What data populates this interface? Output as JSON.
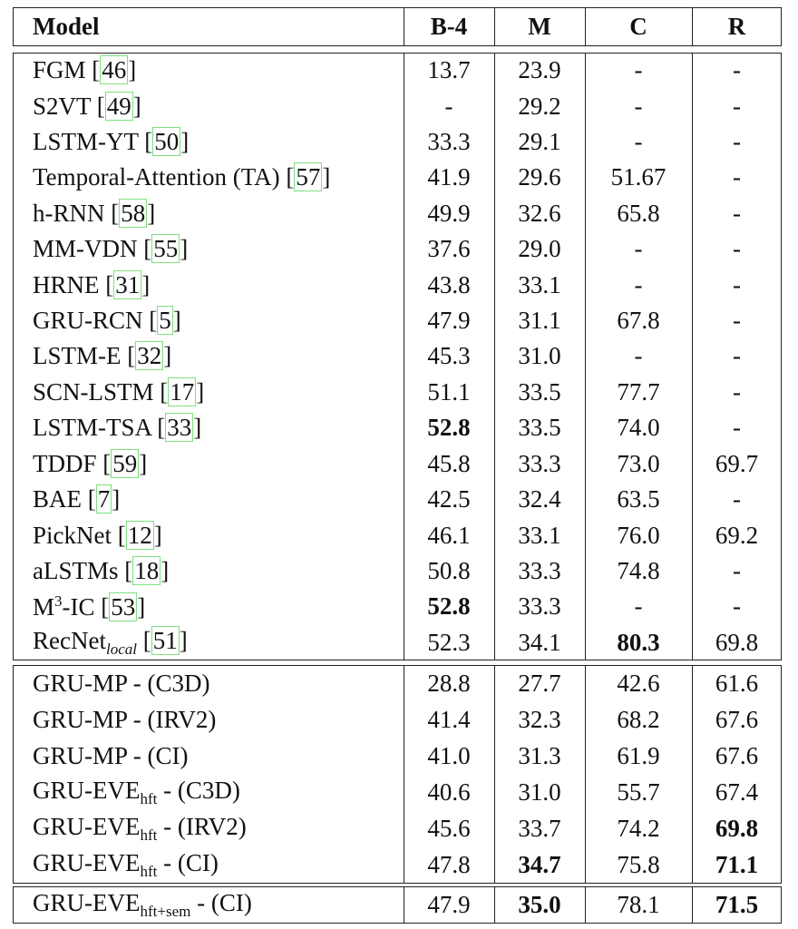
{
  "table": {
    "header": [
      "Model",
      "B-4",
      "M",
      "C",
      "R"
    ],
    "groups": [
      [
        {
          "model": [
            {
              "text": "FGM ["
            },
            {
              "cite": "46"
            },
            {
              "text": "]"
            }
          ],
          "values": [
            "13.7",
            "23.9",
            "-",
            "-"
          ]
        },
        {
          "model": [
            {
              "text": "S2VT ["
            },
            {
              "cite": "49"
            },
            {
              "text": "]"
            }
          ],
          "values": [
            "-",
            "29.2",
            "-",
            "-"
          ]
        },
        {
          "model": [
            {
              "text": "LSTM-YT ["
            },
            {
              "cite": "50"
            },
            {
              "text": "]"
            }
          ],
          "values": [
            "33.3",
            "29.1",
            "-",
            "-"
          ]
        },
        {
          "model": [
            {
              "text": "Temporal-Attention (TA) ["
            },
            {
              "cite": "57"
            },
            {
              "text": "]"
            }
          ],
          "values": [
            "41.9",
            "29.6",
            "51.67",
            "-"
          ]
        },
        {
          "model": [
            {
              "text": "h-RNN ["
            },
            {
              "cite": "58"
            },
            {
              "text": "]"
            }
          ],
          "values": [
            "49.9",
            "32.6",
            "65.8",
            "-"
          ]
        },
        {
          "model": [
            {
              "text": "MM-VDN ["
            },
            {
              "cite": "55"
            },
            {
              "text": "]"
            }
          ],
          "values": [
            "37.6",
            "29.0",
            "-",
            "-"
          ]
        },
        {
          "model": [
            {
              "text": "HRNE ["
            },
            {
              "cite": "31"
            },
            {
              "text": "]"
            }
          ],
          "values": [
            "43.8",
            "33.1",
            "-",
            "-"
          ]
        },
        {
          "model": [
            {
              "text": "GRU-RCN ["
            },
            {
              "cite": "5"
            },
            {
              "text": "]"
            }
          ],
          "values": [
            "47.9",
            "31.1",
            "67.8",
            "-"
          ]
        },
        {
          "model": [
            {
              "text": "LSTM-E ["
            },
            {
              "cite": "32"
            },
            {
              "text": "]"
            }
          ],
          "values": [
            "45.3",
            "31.0",
            "-",
            "-"
          ]
        },
        {
          "model": [
            {
              "text": "SCN-LSTM ["
            },
            {
              "cite": "17"
            },
            {
              "text": "]"
            }
          ],
          "values": [
            "51.1",
            "33.5",
            "77.7",
            "-"
          ]
        },
        {
          "model": [
            {
              "text": "LSTM-TSA ["
            },
            {
              "cite": "33"
            },
            {
              "text": "]"
            }
          ],
          "values": [
            "52.8",
            "33.5",
            "74.0",
            "-"
          ],
          "bold": [
            0
          ]
        },
        {
          "model": [
            {
              "text": "TDDF ["
            },
            {
              "cite": "59"
            },
            {
              "text": "]"
            }
          ],
          "values": [
            "45.8",
            "33.3",
            "73.0",
            "69.7"
          ]
        },
        {
          "model": [
            {
              "text": "BAE ["
            },
            {
              "cite": "7"
            },
            {
              "text": "]"
            }
          ],
          "values": [
            "42.5",
            "32.4",
            "63.5",
            "-"
          ]
        },
        {
          "model": [
            {
              "text": "PickNet ["
            },
            {
              "cite": "12"
            },
            {
              "text": "]"
            }
          ],
          "values": [
            "46.1",
            "33.1",
            "76.0",
            "69.2"
          ]
        },
        {
          "model": [
            {
              "text": "aLSTMs ["
            },
            {
              "cite": "18"
            },
            {
              "text": "]"
            }
          ],
          "values": [
            "50.8",
            "33.3",
            "74.8",
            "-"
          ]
        },
        {
          "model": [
            {
              "text": "M"
            },
            {
              "sup": "3"
            },
            {
              "text": "-IC ["
            },
            {
              "cite": "53"
            },
            {
              "text": "]"
            }
          ],
          "values": [
            "52.8",
            "33.3",
            "-",
            "-"
          ],
          "bold": [
            0
          ]
        },
        {
          "model": [
            {
              "text": "RecNet"
            },
            {
              "sub": "local"
            },
            {
              "text": " ["
            },
            {
              "cite": "51"
            },
            {
              "text": "]"
            }
          ],
          "values": [
            "52.3",
            "34.1",
            "80.3",
            "69.8"
          ],
          "bold": [
            2
          ]
        }
      ],
      [
        {
          "model": [
            {
              "text": "GRU-MP - (C3D)"
            }
          ],
          "values": [
            "28.8",
            "27.7",
            "42.6",
            "61.6"
          ]
        },
        {
          "model": [
            {
              "text": "GRU-MP - (IRV2)"
            }
          ],
          "values": [
            "41.4",
            "32.3",
            "68.2",
            "67.6"
          ]
        },
        {
          "model": [
            {
              "text": "GRU-MP - (CI)"
            }
          ],
          "values": [
            "41.0",
            "31.3",
            "61.9",
            "67.6"
          ]
        },
        {
          "model": [
            {
              "text": "GRU-EVE"
            },
            {
              "subr": "hft"
            },
            {
              "text": " - (C3D)"
            }
          ],
          "values": [
            "40.6",
            "31.0",
            "55.7",
            "67.4"
          ]
        },
        {
          "model": [
            {
              "text": "GRU-EVE"
            },
            {
              "subr": "hft"
            },
            {
              "text": " - (IRV2)"
            }
          ],
          "values": [
            "45.6",
            "33.7",
            "74.2",
            "69.8"
          ],
          "bold": [
            3
          ]
        },
        {
          "model": [
            {
              "text": "GRU-EVE"
            },
            {
              "subr": "hft"
            },
            {
              "text": " - (CI)"
            }
          ],
          "values": [
            "47.8",
            "34.7",
            "75.8",
            "71.1"
          ],
          "bold": [
            1,
            3
          ]
        }
      ],
      [
        {
          "model": [
            {
              "text": "GRU-EVE"
            },
            {
              "subr": "hft+sem"
            },
            {
              "text": " - (CI)"
            }
          ],
          "values": [
            "47.9",
            "35.0",
            "78.1",
            "71.5"
          ],
          "bold": [
            1,
            3
          ]
        }
      ]
    ]
  }
}
